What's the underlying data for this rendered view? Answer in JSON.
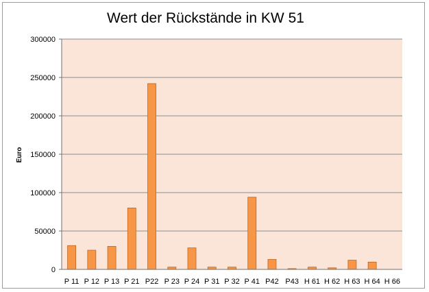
{
  "chart_data": {
    "type": "bar",
    "title": "Wert der Rückstände in KW 51",
    "xlabel": "",
    "ylabel": "Euro",
    "ylim": [
      0,
      300000
    ],
    "yticks": [
      "0",
      "50000",
      "100000",
      "150000",
      "200000",
      "250000",
      "300000"
    ],
    "categories": [
      "P 11",
      "P 12",
      "P 13",
      "P 21",
      "P22",
      "P 23",
      "P 24",
      "P 31",
      "P 32",
      "P 41",
      "P42",
      "P43",
      "H 61",
      "H 62",
      "H 63",
      "H 64",
      "H 66"
    ],
    "values": [
      31000,
      25000,
      30000,
      80000,
      242000,
      3000,
      28000,
      3000,
      3000,
      94000,
      13000,
      1000,
      3000,
      2000,
      12000,
      9500,
      0
    ],
    "grid": true,
    "legend": "none",
    "colors": {
      "bar": "#f79646",
      "bar_border": "#c0651f",
      "plot_background": "#fbe4d8",
      "gridline": "#8c8c8c",
      "frame": "#9a9a9a"
    }
  }
}
